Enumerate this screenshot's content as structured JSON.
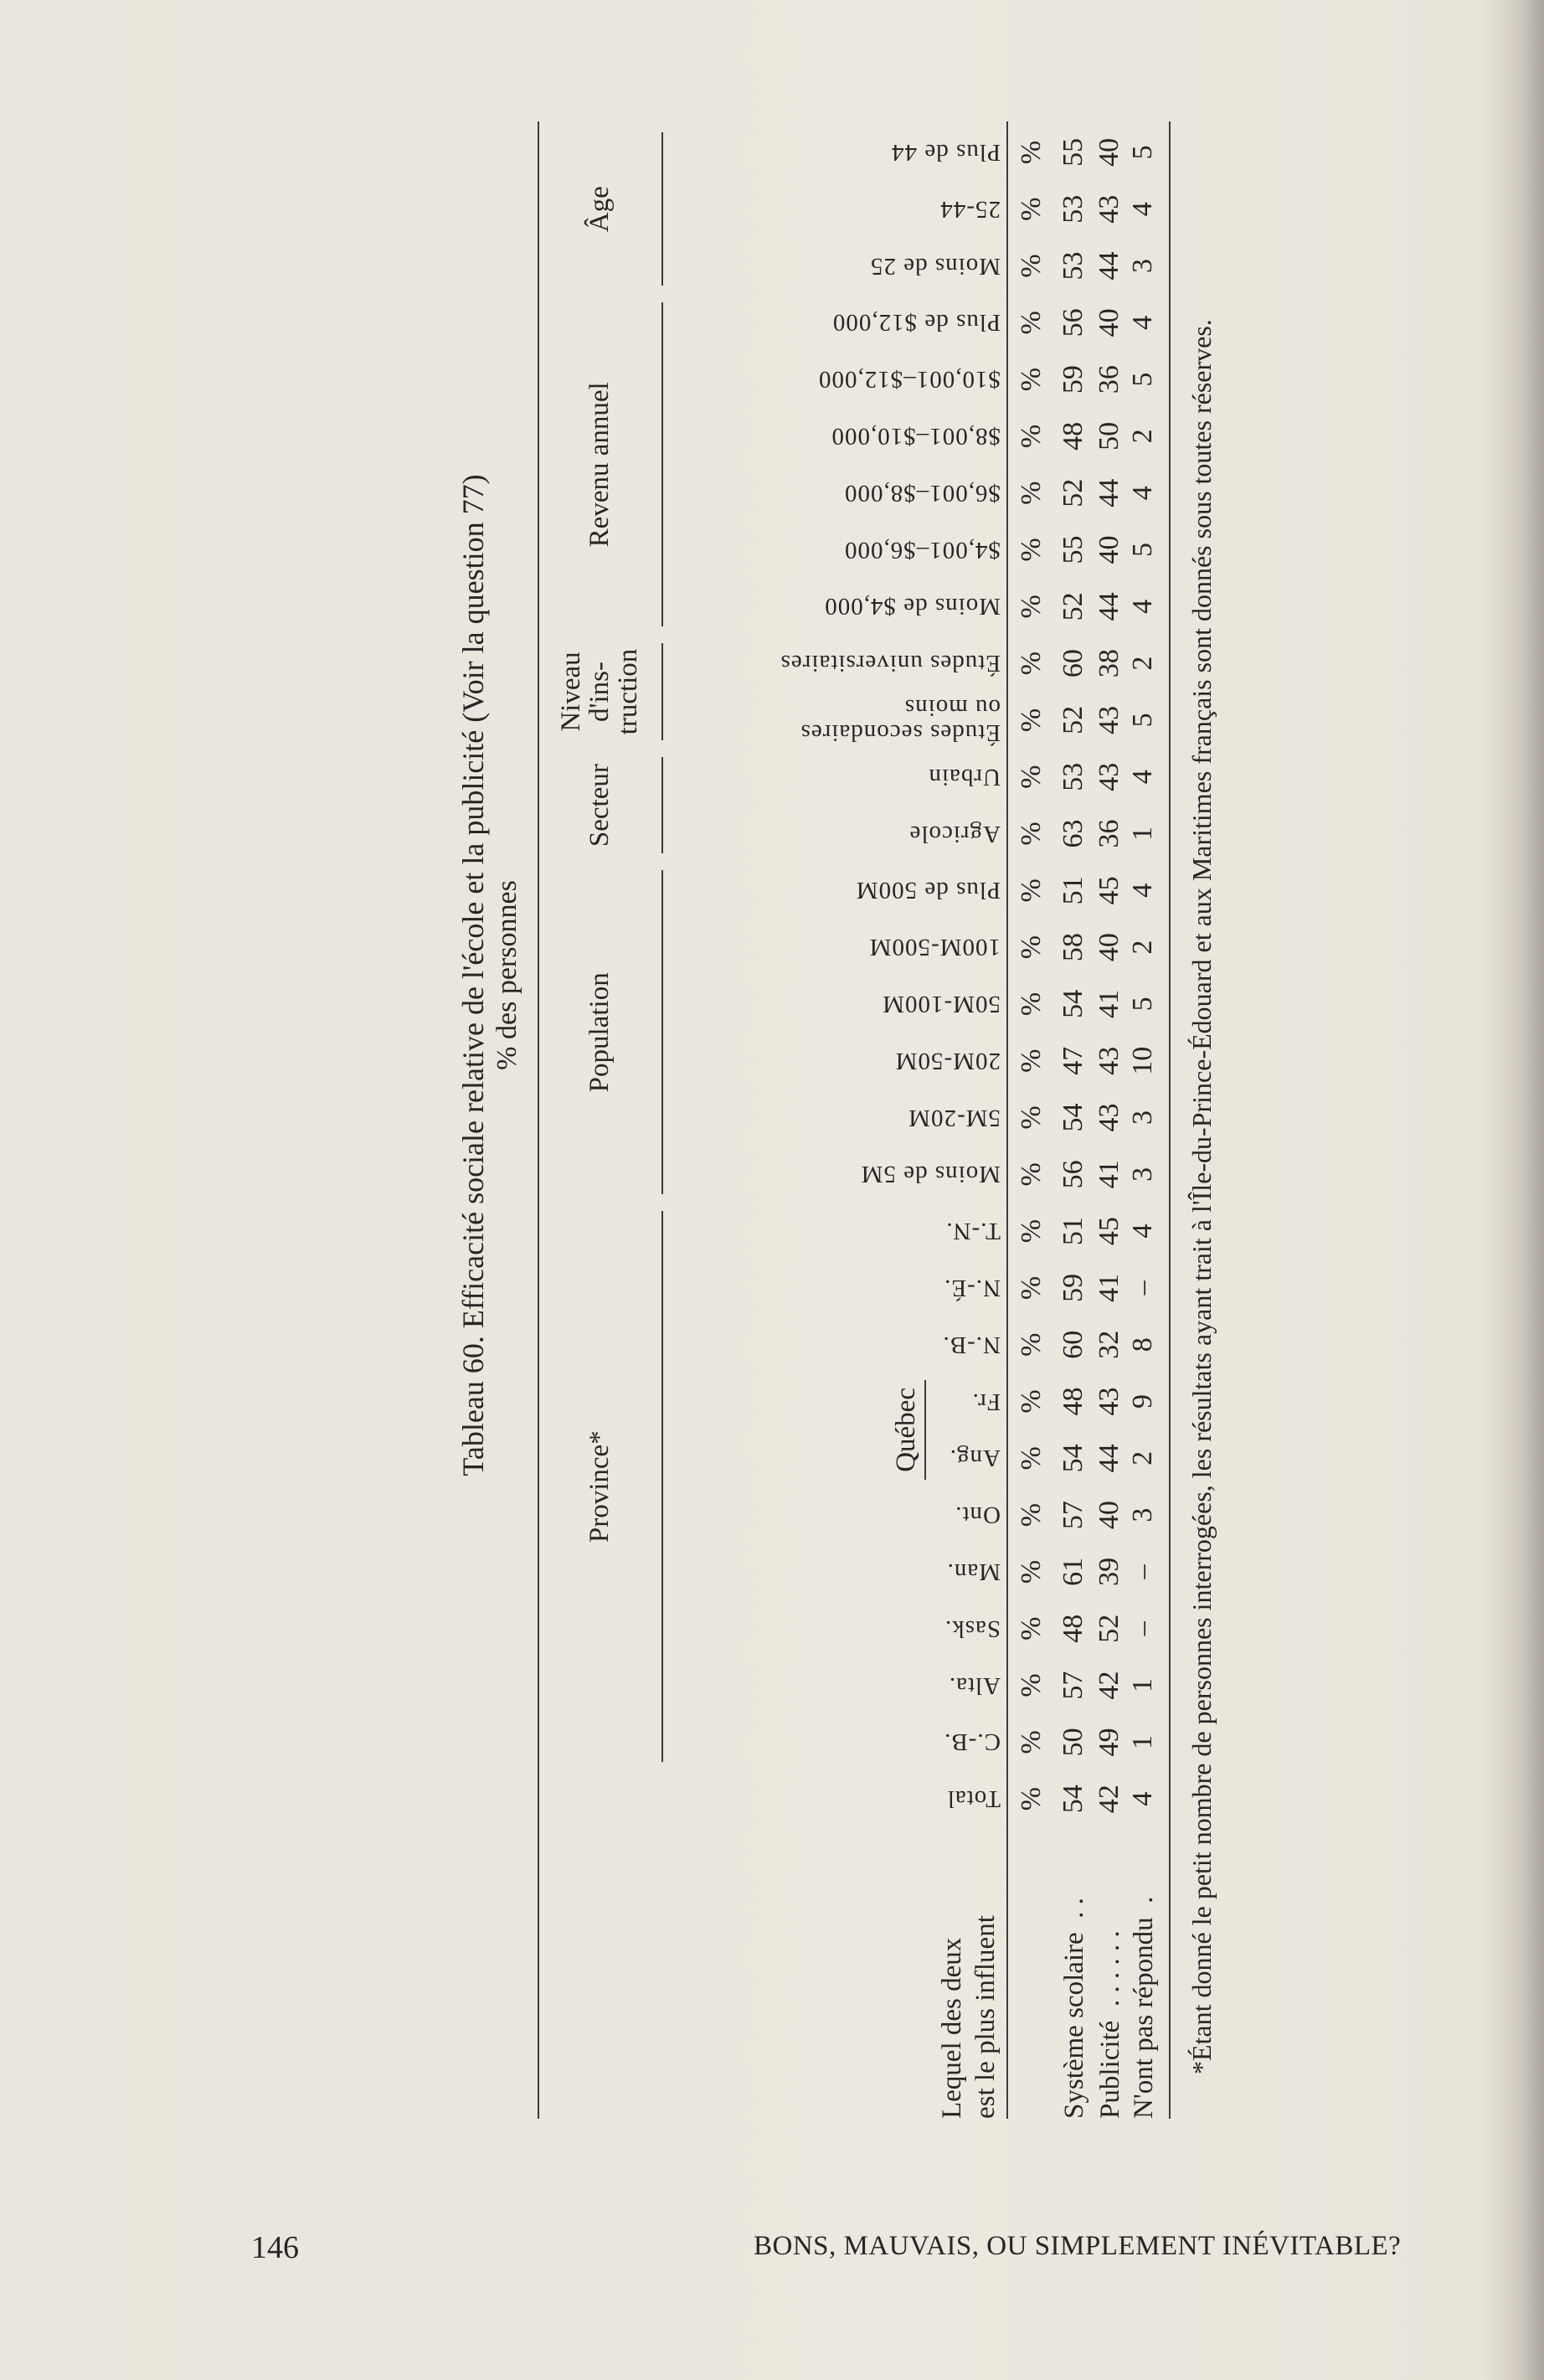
{
  "title": "Tableau 60. Efficacité sociale relative de l'école et la publicité (Voir la question 77)",
  "subtitle": "% des personnes",
  "stub_header": [
    "Lequel des deux",
    "est le plus influent"
  ],
  "groups": [
    {
      "key": "province",
      "label": "Province*"
    },
    {
      "key": "population",
      "label": "Population"
    },
    {
      "key": "secteur",
      "label": "Secteur"
    },
    {
      "key": "niveau",
      "label": "Niveau\nd'ins-\ntruction"
    },
    {
      "key": "revenu",
      "label": "Revenu annuel"
    },
    {
      "key": "age",
      "label": "Âge"
    }
  ],
  "subgroups": [
    {
      "key": "quebec",
      "label": "Québec"
    }
  ],
  "columns": [
    {
      "header": "Total",
      "group": null
    },
    {
      "header": "C.-B.",
      "group": "province"
    },
    {
      "header": "Alta.",
      "group": "province"
    },
    {
      "header": "Sask.",
      "group": "province"
    },
    {
      "header": "Man.",
      "group": "province"
    },
    {
      "header": "Ont.",
      "group": "province"
    },
    {
      "header": "Ang.",
      "group": "province",
      "subgroup": "quebec"
    },
    {
      "header": "Fr.",
      "group": "province",
      "subgroup": "quebec"
    },
    {
      "header": "N.-B.",
      "group": "province"
    },
    {
      "header": "N.-É.",
      "group": "province"
    },
    {
      "header": "T.-N.",
      "group": "province"
    },
    {
      "header": "Moins de 5M",
      "group": "population"
    },
    {
      "header": "5M-20M",
      "group": "population"
    },
    {
      "header": "20M-50M",
      "group": "population"
    },
    {
      "header": "50M-100M",
      "group": "population"
    },
    {
      "header": "100M-500M",
      "group": "population"
    },
    {
      "header": "Plus de 500M",
      "group": "population"
    },
    {
      "header": "Agricole",
      "group": "secteur"
    },
    {
      "header": "Urbain",
      "group": "secteur"
    },
    {
      "header": "Études secondaires\nou moins",
      "group": "niveau"
    },
    {
      "header": "Études universitaires",
      "group": "niveau"
    },
    {
      "header": "Moins de $4,000",
      "group": "revenu"
    },
    {
      "header": "$4,001–$6,000",
      "group": "revenu"
    },
    {
      "header": "$6,001–$8,000",
      "group": "revenu"
    },
    {
      "header": "$8,001–$10,000",
      "group": "revenu"
    },
    {
      "header": "$10,001–$12,000",
      "group": "revenu"
    },
    {
      "header": "Plus de $12,000",
      "group": "revenu"
    },
    {
      "header": "Moins de 25",
      "group": "age"
    },
    {
      "header": "25-44",
      "group": "age"
    },
    {
      "header": "Plus de 44",
      "group": "age"
    }
  ],
  "unit_symbol": "%",
  "rows": [
    {
      "label": "Système scolaire  . .",
      "values": [
        "54",
        "50",
        "57",
        "48",
        "61",
        "57",
        "54",
        "48",
        "60",
        "59",
        "51",
        "56",
        "54",
        "47",
        "54",
        "58",
        "51",
        "63",
        "53",
        "52",
        "60",
        "52",
        "55",
        "52",
        "48",
        "59",
        "56",
        "53",
        "53",
        "55"
      ]
    },
    {
      "label": "Publicité  . . . . . .",
      "values": [
        "42",
        "49",
        "42",
        "52",
        "39",
        "40",
        "44",
        "43",
        "32",
        "41",
        "45",
        "41",
        "43",
        "43",
        "41",
        "40",
        "45",
        "36",
        "43",
        "43",
        "38",
        "44",
        "40",
        "44",
        "50",
        "36",
        "40",
        "44",
        "43",
        "40"
      ]
    },
    {
      "label": "N'ont pas répondu  .",
      "values": [
        "4",
        "1",
        "1",
        "–",
        "–",
        "3",
        "2",
        "9",
        "8",
        "–",
        "4",
        "3",
        "3",
        "10",
        "5",
        "2",
        "4",
        "1",
        "4",
        "5",
        "2",
        "4",
        "5",
        "4",
        "2",
        "5",
        "4",
        "3",
        "4",
        "5"
      ]
    }
  ],
  "footnote": "*Étant donné le petit nombre de personnes interrogées, les résultats ayant trait à l'Île-du-Prince-Édouard et aux Maritimes français sont donnés sous toutes réserves.",
  "page_number": "146",
  "running_head": "BONS, MAUVAIS, OU SIMPLEMENT INÉVITABLE?"
}
